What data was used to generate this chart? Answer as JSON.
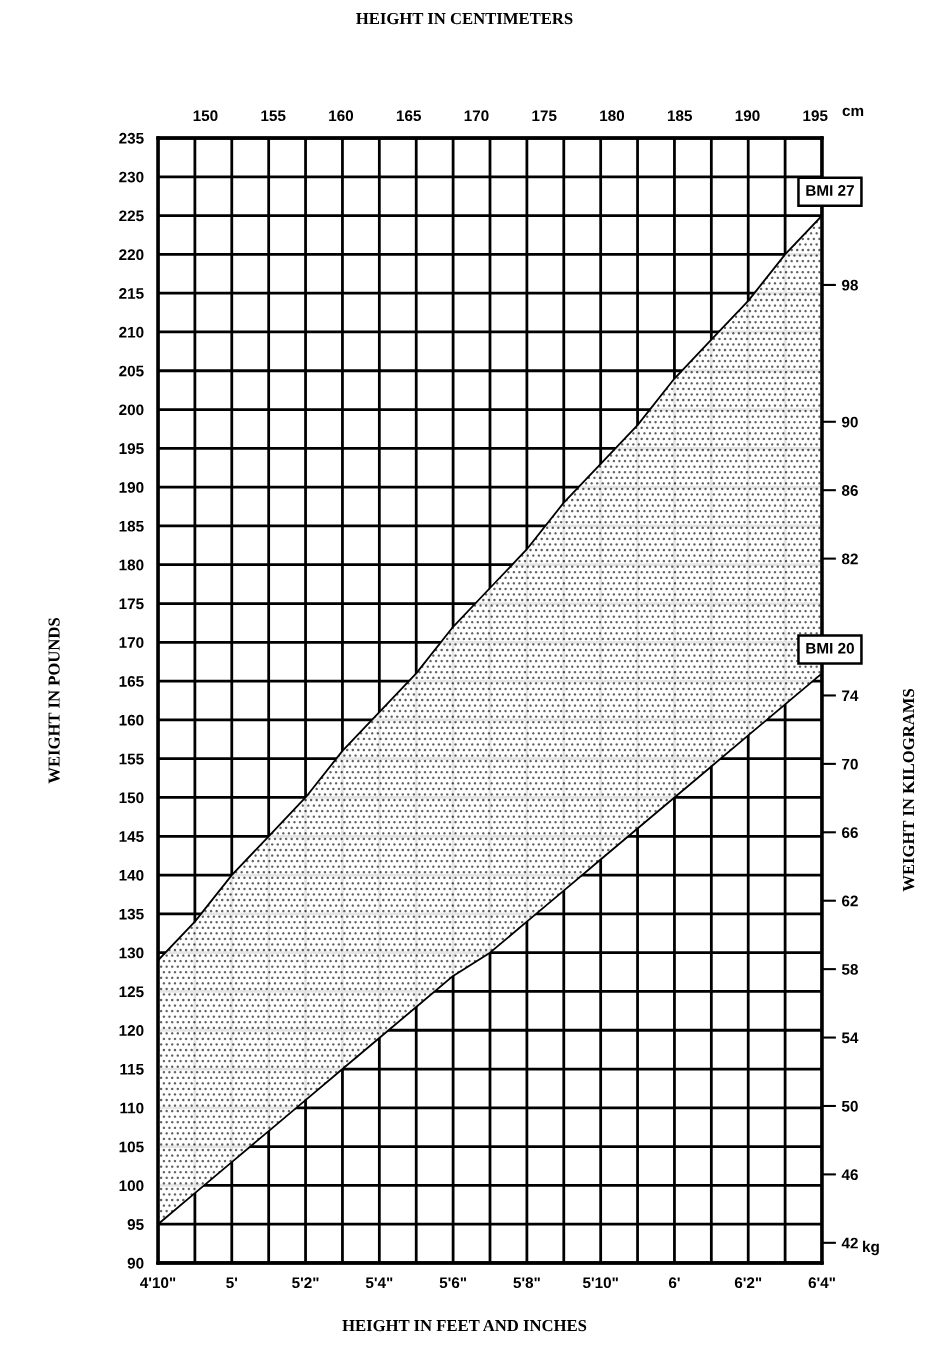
{
  "chart_data": {
    "type": "line",
    "title": "HEIGHT IN CENTIMETERS",
    "xlabel": "HEIGHT IN FEET AND INCHES",
    "ylabel": "WEIGHT IN POUNDS",
    "y2label": "WEIGHT IN KILOGRAMS",
    "categories": [
      "4'10\"",
      null,
      "5'",
      null,
      "5'2\"",
      null,
      "5'4\"",
      null,
      "5'6\"",
      null,
      "5'8\"",
      null,
      "5'10\"",
      null,
      "6'",
      null,
      "6'2\"",
      null,
      "6'4\""
    ],
    "ylim": [
      90,
      235
    ],
    "yticks": [
      90,
      95,
      100,
      105,
      110,
      115,
      120,
      125,
      130,
      135,
      140,
      145,
      150,
      155,
      160,
      165,
      170,
      175,
      180,
      185,
      190,
      195,
      200,
      205,
      210,
      215,
      220,
      225,
      230,
      235
    ],
    "x2lim": [
      146.5,
      195.5
    ],
    "x2ticks": [
      150,
      155,
      160,
      165,
      170,
      175,
      180,
      185,
      190,
      195
    ],
    "y2lim": [
      40.82,
      106.59
    ],
    "y2ticks": [
      42,
      46,
      50,
      54,
      58,
      62,
      66,
      70,
      74,
      82,
      86,
      90,
      98
    ],
    "annotations": [
      "cm",
      "kg"
    ],
    "series": [
      {
        "name": "BMI 27",
        "color": "#000000",
        "values": [
          129,
          134,
          140,
          145,
          150,
          156,
          161,
          166,
          172,
          177,
          182,
          188,
          193,
          198,
          204,
          209,
          214,
          220,
          225
        ],
        "lower": [
          95,
          99,
          103,
          107,
          111,
          115,
          119,
          123,
          127,
          130,
          134,
          138,
          142,
          146,
          150,
          154,
          158,
          162,
          166
        ],
        "upper": [
          129,
          134,
          140,
          145,
          150,
          156,
          161,
          166,
          172,
          177,
          182,
          188,
          193,
          198,
          204,
          209,
          214,
          220,
          225
        ]
      },
      {
        "name": "BMI 20",
        "color": "#000000",
        "values": [
          95,
          99,
          103,
          107,
          111,
          115,
          119,
          123,
          127,
          130,
          134,
          138,
          142,
          146,
          150,
          154,
          158,
          162,
          166
        ]
      }
    ],
    "grid": true,
    "legend": false,
    "marker": "none",
    "line_style": "solid"
  }
}
